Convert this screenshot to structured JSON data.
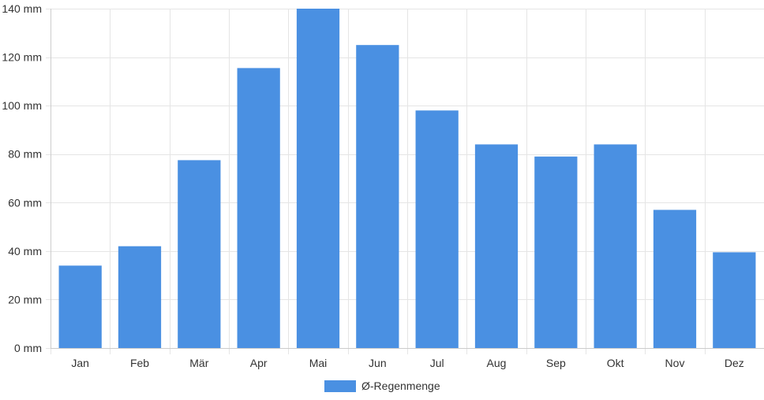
{
  "chart_data": {
    "type": "bar",
    "categories": [
      "Jan",
      "Feb",
      "Mär",
      "Apr",
      "Mai",
      "Jun",
      "Jul",
      "Aug",
      "Sep",
      "Okt",
      "Nov",
      "Dez"
    ],
    "series": [
      {
        "name": "Ø-Regenmenge",
        "values": [
          34,
          42,
          77.5,
          115.5,
          140,
          125,
          98,
          84,
          79,
          84,
          57,
          39.5
        ]
      }
    ],
    "ylim": [
      0,
      140
    ],
    "yticks": [
      0,
      20,
      40,
      60,
      80,
      100,
      120,
      140
    ],
    "yunit": "mm",
    "grid": true,
    "legend_position": "bottom",
    "title": "",
    "xlabel": "",
    "ylabel": "",
    "colors": {
      "bar": "#4a90e2",
      "grid": "#e5e5e5",
      "axis": "#cccccc",
      "text": "#333333"
    }
  }
}
